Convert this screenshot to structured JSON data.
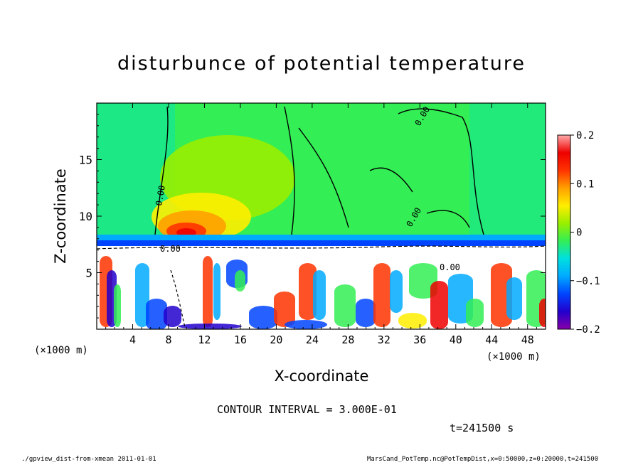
{
  "chart_data": {
    "type": "heatmap",
    "title": "disturbunce of potential temperature",
    "xlabel": "X-coordinate",
    "ylabel": "Z-coordinate",
    "x_unit": "(×1000 m)",
    "x_ticks": [
      "4",
      "8",
      "12",
      "16",
      "20",
      "24",
      "28",
      "32",
      "36",
      "40",
      "44",
      "48"
    ],
    "x_tick_values": [
      4,
      8,
      12,
      16,
      20,
      24,
      28,
      32,
      36,
      40,
      44,
      48
    ],
    "y_ticks": [
      "5",
      "10",
      "15"
    ],
    "y_tick_values": [
      5,
      10,
      15
    ],
    "xlim": [
      0,
      50
    ],
    "ylim": [
      0,
      20
    ],
    "colorbar": {
      "ticks": [
        "0.2",
        "0.1",
        "0",
        "−0.1",
        "−0.2"
      ],
      "tick_values": [
        0.2,
        0.1,
        0,
        -0.1,
        -0.2
      ],
      "range": [
        -0.2,
        0.2
      ]
    },
    "contour_labels": [
      "0.00",
      "0.00",
      "0.00",
      "0.00",
      "0.00"
    ],
    "contour_interval_text": "CONTOUR INTERVAL = 3.000E-01",
    "time_text": "t=241500 s",
    "colors": {
      "background": "#33ee55",
      "colormap": [
        "#8800aa",
        "#2200cc",
        "#0044ff",
        "#00aaff",
        "#00e0e0",
        "#33ee55",
        "#99ee00",
        "#ffee00",
        "#ffa000",
        "#ff3300",
        "#ee0000",
        "#ffaaaa"
      ]
    }
  },
  "footer": {
    "left": "./gpview_dist-from-xmean   2011-01-01",
    "right": "MarsCand_PotTemp.nc@PotTempDist,x=0:50000,z=0:20000,t=241500"
  }
}
